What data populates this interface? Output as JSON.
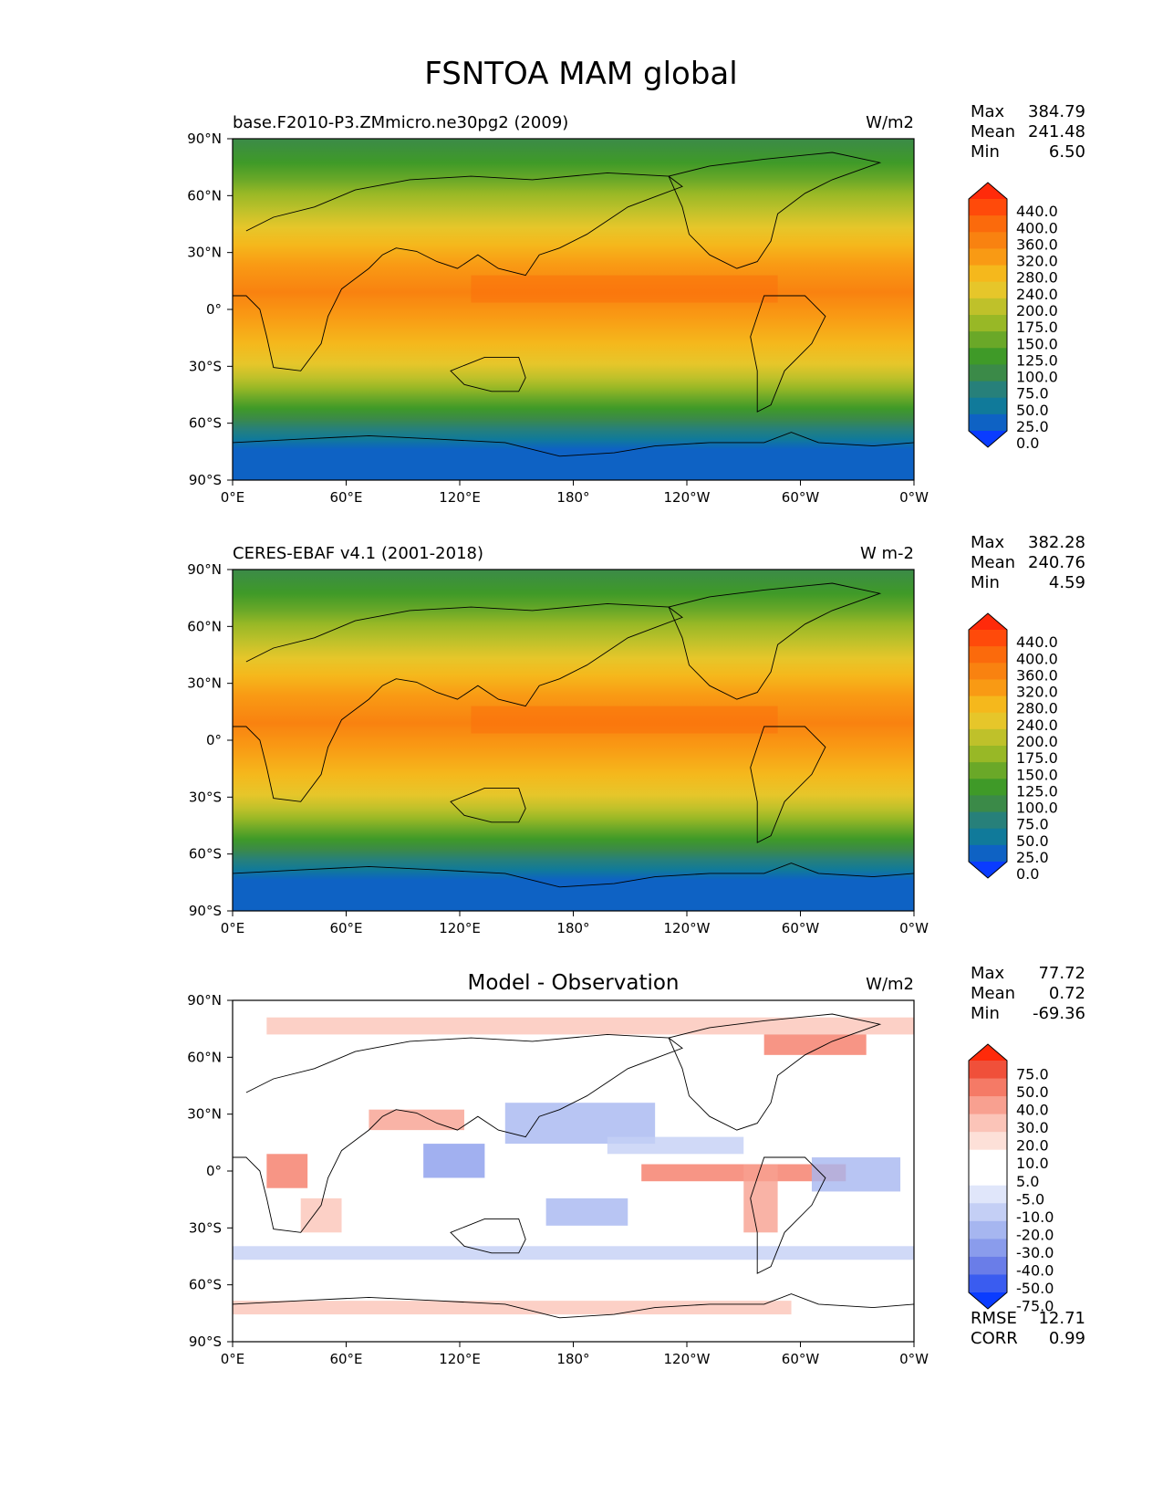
{
  "title": "FSNTOA MAM global",
  "lat_ticks": [
    "90°N",
    "60°N",
    "30°N",
    "0°",
    "30°S",
    "60°S",
    "90°S"
  ],
  "lon_ticks": [
    "0°E",
    "60°E",
    "120°E",
    "180°",
    "120°W",
    "60°W",
    "0°W"
  ],
  "panels": [
    {
      "id": "model",
      "left_title": "base.F2010-P3.ZMmicro.ne30pg2 (2009)",
      "center_title": "",
      "units": "W/m2",
      "stats": [
        {
          "label": "Max",
          "value": "384.79"
        },
        {
          "label": "Mean",
          "value": "241.48"
        },
        {
          "label": "Min",
          "value": "6.50"
        }
      ],
      "colorbar_labels": [
        "440.0",
        "400.0",
        "360.0",
        "320.0",
        "280.0",
        "240.0",
        "200.0",
        "175.0",
        "150.0",
        "125.0",
        "100.0",
        "75.0",
        "50.0",
        "25.0",
        "0.0"
      ]
    },
    {
      "id": "observation",
      "left_title": "CERES-EBAF v4.1 (2001-2018)",
      "center_title": "",
      "units": "W m-2",
      "stats": [
        {
          "label": "Max",
          "value": "382.28"
        },
        {
          "label": "Mean",
          "value": "240.76"
        },
        {
          "label": "Min",
          "value": "4.59"
        }
      ],
      "colorbar_labels": [
        "440.0",
        "400.0",
        "360.0",
        "320.0",
        "280.0",
        "240.0",
        "200.0",
        "175.0",
        "150.0",
        "125.0",
        "100.0",
        "75.0",
        "50.0",
        "25.0",
        "0.0"
      ]
    },
    {
      "id": "difference",
      "left_title": "",
      "center_title": "Model - Observation",
      "units": "W/m2",
      "stats": [
        {
          "label": "Max",
          "value": "77.72"
        },
        {
          "label": "Mean",
          "value": "0.72"
        },
        {
          "label": "Min",
          "value": "-69.36"
        }
      ],
      "colorbar_labels": [
        "75.0",
        "50.0",
        "40.0",
        "30.0",
        "20.0",
        "10.0",
        "5.0",
        "-5.0",
        "-10.0",
        "-20.0",
        "-30.0",
        "-40.0",
        "-50.0",
        "-75.0"
      ],
      "extra_stats": [
        {
          "label": "RMSE",
          "value": "12.71"
        },
        {
          "label": "CORR",
          "value": "0.99"
        }
      ]
    }
  ],
  "colors": {
    "abs_colorbar": [
      "#ff2a0a",
      "#ff4a0a",
      "#fb6a0c",
      "#f98210",
      "#f99a14",
      "#f5b81c",
      "#e6c62a",
      "#bfc12a",
      "#98b826",
      "#6aa828",
      "#3f9a28",
      "#3b8a48",
      "#27807a",
      "#107a9a",
      "#0e62c4",
      "#0a3cff"
    ],
    "diff_colorbar": [
      "#ff2a0a",
      "#f0503a",
      "#f57a66",
      "#f8a090",
      "#fbc4b8",
      "#fde0d8",
      "#ffffff",
      "#ffffff",
      "#e0e6fa",
      "#c4cff5",
      "#a6b6f0",
      "#8a9cec",
      "#6a7de8",
      "#3a5cf0",
      "#0a3cff"
    ],
    "ocean_cold": "#0e5ec8",
    "continent_outline": "#000000"
  }
}
